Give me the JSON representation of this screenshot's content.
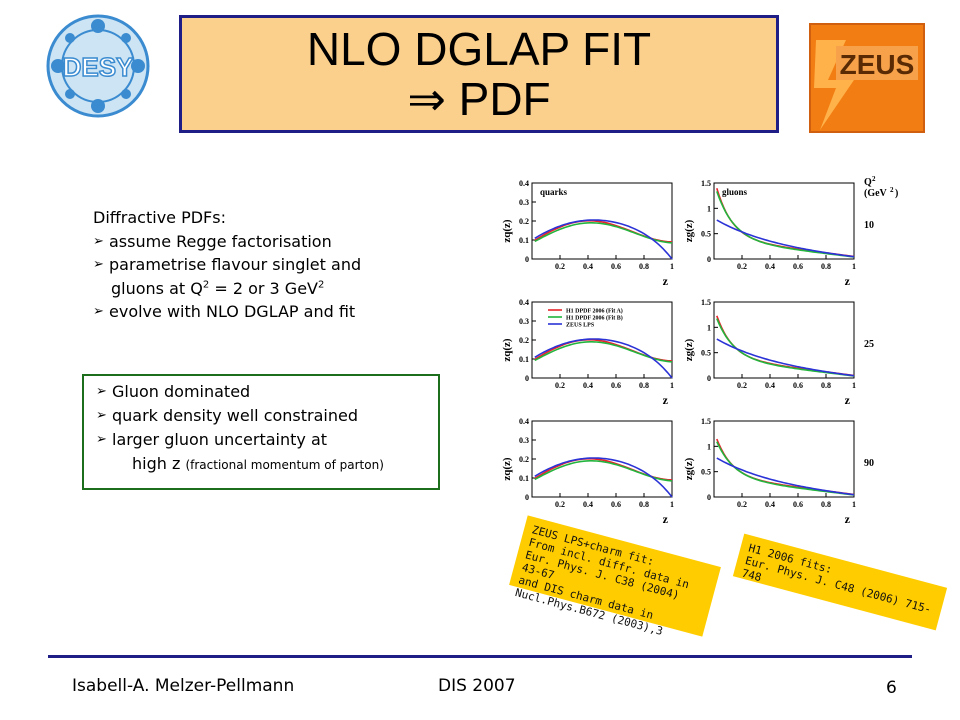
{
  "title": {
    "line1": "NLO DGLAP FIT",
    "line2": "⇒ PDF"
  },
  "logos": {
    "left": "DESY",
    "right": "ZEUS"
  },
  "intro": {
    "heading": "Diffractive PDFs:",
    "item1": "assume Regge factorisation",
    "item2": "parametrise flavour singlet and",
    "item2_cont_pre": "gluons at Q",
    "item2_sup1": "2",
    "item2_cont_mid": " = 2 or 3 GeV",
    "item2_sup2": "2",
    "item3": "evolve with NLO DGLAP and fit"
  },
  "summary": {
    "item1": "Gluon dominated",
    "item2": "quark density well constrained",
    "item3": "larger gluon uncertainty at",
    "item3_cont": "high z",
    "item3_note": "(fractional momentum of parton)"
  },
  "plots": {
    "left_ylabel": "zq(z)",
    "right_ylabel": "zg(z)",
    "xlabel": "z",
    "left_panel_label": "quarks",
    "right_panel_label": "gluons",
    "q2_label": "Q",
    "q2_sup": "2",
    "q2_unit": "(GeV",
    "q2_unit_sup": "2",
    "q2_unit_close": ")",
    "q2_values": [
      "10",
      "25",
      "90"
    ],
    "left_yticks": [
      "0",
      "0.1",
      "0.2",
      "0.3",
      "0.4"
    ],
    "right_yticks": [
      "0",
      "0.5",
      "1",
      "1.5"
    ],
    "xticks": [
      "0.2",
      "0.4",
      "0.6",
      "0.8",
      "1"
    ],
    "legend": [
      "H1 DPDF 2006 (Fit A)",
      "H1 DPDF 2006 (Fit B)",
      "ZEUS LPS"
    ],
    "colors": {
      "fitA": "#e8232a",
      "fitB": "#22b43c",
      "zeus": "#2b33d6"
    }
  },
  "notes": {
    "zeus": [
      "ZEUS LPS+charm fit:",
      "From incl. diffr. data in",
      "Eur. Phys. J. C38 (2004) 43-67",
      "and DIS charm data in",
      "Nucl.Phys.B672 (2003),3"
    ],
    "h1": [
      "H1 2006 fits:",
      "Eur. Phys. J. C48 (2006) 715-748"
    ]
  },
  "footer": {
    "author": "Isabell-A. Melzer-Pellmann",
    "conference": "DIS 2007",
    "page": "6"
  }
}
